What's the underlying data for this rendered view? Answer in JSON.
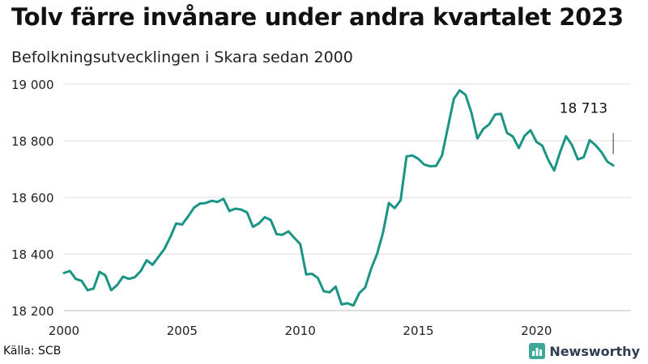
{
  "chart_data": {
    "type": "line",
    "title": "Tolv färre invånare under andra kvartalet 2023",
    "subtitle": "Befolkningsutvecklingen i Skara sedan 2000",
    "xlabel": "",
    "ylabel": "",
    "xlim": [
      2000,
      2024
    ],
    "ylim": [
      18200,
      19000
    ],
    "x_ticks": [
      "2000",
      "2005",
      "2010",
      "2015",
      "2020"
    ],
    "y_ticks": [
      "18 200",
      "18 400",
      "18 600",
      "18 800",
      "19 000"
    ],
    "grid": true,
    "legend": "none",
    "line_color": "#1a9484",
    "annotation": {
      "label": "18 713",
      "x": 2023.25,
      "y": 18713
    },
    "series": [
      {
        "x": [
          2000.0,
          2000.25,
          2000.5,
          2000.75,
          2001.0,
          2001.25,
          2001.5,
          2001.75,
          2002.0,
          2002.25,
          2002.5,
          2002.75,
          2003.0,
          2003.25,
          2003.5,
          2003.75,
          2004.0,
          2004.25,
          2004.5,
          2004.75,
          2005.0,
          2005.25,
          2005.5,
          2005.75,
          2006.0,
          2006.25,
          2006.5,
          2006.75,
          2007.0,
          2007.25,
          2007.5,
          2007.75,
          2008.0,
          2008.25,
          2008.5,
          2008.75,
          2009.0,
          2009.25,
          2009.5,
          2009.75,
          2010.0,
          2010.25,
          2010.5,
          2010.75,
          2011.0,
          2011.25,
          2011.5,
          2011.75,
          2012.0,
          2012.25,
          2012.5,
          2012.75,
          2013.0,
          2013.25,
          2013.5,
          2013.75,
          2014.0,
          2014.25,
          2014.5,
          2014.75,
          2015.0,
          2015.25,
          2015.5,
          2015.75,
          2016.0,
          2016.25,
          2016.5,
          2016.75,
          2017.0,
          2017.25,
          2017.5,
          2017.75,
          2018.0,
          2018.25,
          2018.5,
          2018.75,
          2019.0,
          2019.25,
          2019.5,
          2019.75,
          2020.0,
          2020.25,
          2020.5,
          2020.75,
          2021.0,
          2021.25,
          2021.5,
          2021.75,
          2022.0,
          2022.25,
          2022.5,
          2022.75,
          2023.0,
          2023.25
        ],
        "values": [
          18333,
          18340,
          18312,
          18305,
          18272,
          18278,
          18337,
          18325,
          18272,
          18290,
          18320,
          18312,
          18318,
          18340,
          18378,
          18362,
          18390,
          18418,
          18460,
          18508,
          18504,
          18532,
          18563,
          18578,
          18580,
          18588,
          18584,
          18595,
          18552,
          18560,
          18557,
          18547,
          18496,
          18508,
          18530,
          18520,
          18470,
          18468,
          18480,
          18457,
          18435,
          18328,
          18330,
          18315,
          18268,
          18265,
          18285,
          18222,
          18226,
          18218,
          18262,
          18282,
          18348,
          18400,
          18475,
          18580,
          18562,
          18590,
          18745,
          18748,
          18736,
          18716,
          18710,
          18711,
          18748,
          18848,
          18948,
          18978,
          18962,
          18898,
          18808,
          18842,
          18858,
          18893,
          18895,
          18828,
          18815,
          18774,
          18818,
          18837,
          18796,
          18782,
          18732,
          18695,
          18760,
          18816,
          18785,
          18734,
          18742,
          18802,
          18784,
          18760,
          18726,
          18713
        ]
      }
    ]
  },
  "source": "Källa: SCB",
  "brand": {
    "name": "Newsworthy",
    "icon": "newsworthy-logo-icon",
    "color": "#3fa796"
  }
}
